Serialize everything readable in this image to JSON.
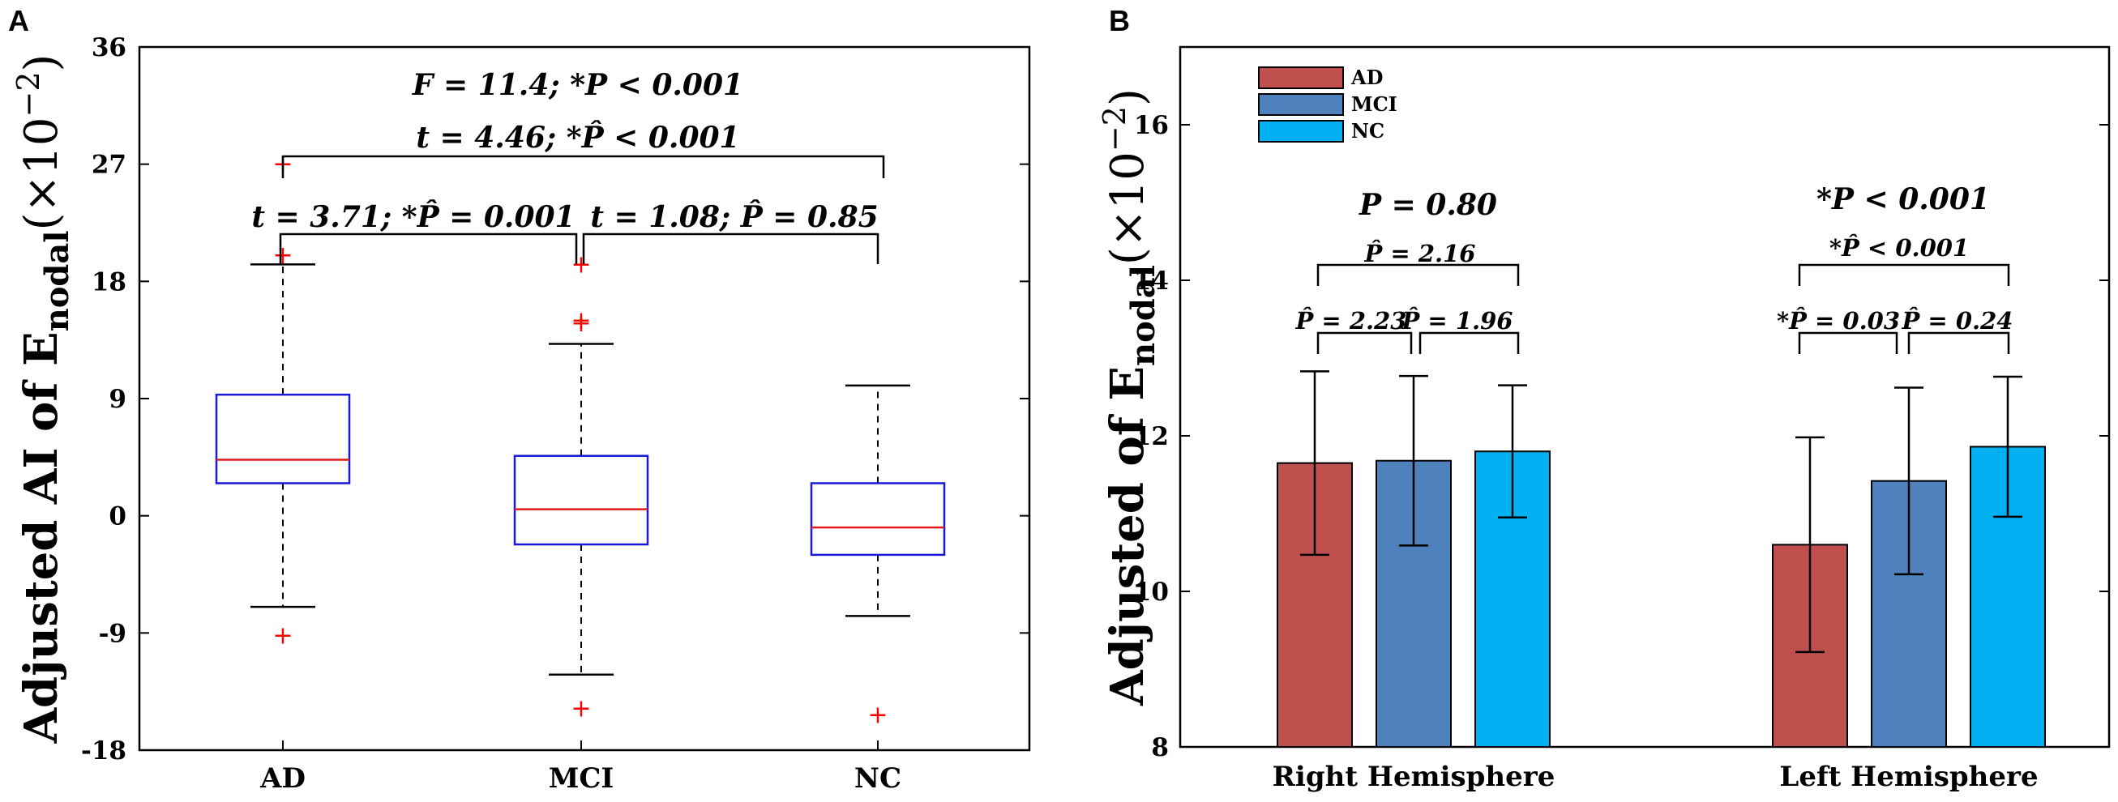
{
  "panels": {
    "a_label": "A",
    "b_label": "B"
  },
  "chart_data": [
    {
      "type": "box",
      "panel": "A",
      "ylabel": "Adjusted AI of E",
      "ylabel_sub": "nodal",
      "ylabel_suffix": "(×10",
      "ylabel_exp": "−2",
      "ylabel_close": ")",
      "ylim": [
        -18,
        36
      ],
      "yticks": [
        "-18",
        "-9",
        "0",
        "9",
        "18",
        "27",
        "36"
      ],
      "ytick_values": [
        -18,
        -9,
        0,
        9,
        18,
        27,
        36
      ],
      "categories": [
        "AD",
        "MCI",
        "NC"
      ],
      "boxes": [
        {
          "category": "AD",
          "whisker_low": -7.0,
          "q1": 2.5,
          "median": 4.3,
          "q3": 9.3,
          "whisker_high": 19.3,
          "outliers": [
            -9.2,
            20.0,
            27.0
          ]
        },
        {
          "category": "MCI",
          "whisker_low": -12.2,
          "q1": -2.2,
          "median": 0.5,
          "q3": 4.6,
          "whisker_high": 13.2,
          "outliers": [
            -14.8,
            14.8,
            15.0,
            19.3
          ]
        },
        {
          "category": "NC",
          "whisker_low": -7.7,
          "q1": -3.0,
          "median": -0.9,
          "q3": 2.5,
          "whisker_high": 10.0,
          "outliers": [
            -15.3
          ]
        }
      ],
      "annotations": {
        "overall": "F = 11.4; *P < 0.001",
        "ad_nc": "t = 4.46; *P̂ < 0.001",
        "ad_mci": "t = 3.71; *P̂ = 0.001",
        "mci_nc": "t = 1.08; P̂ = 0.85"
      },
      "colors": {
        "box": "#1a1ad6",
        "median": "#e31a1c",
        "outlier": "#ff0000"
      }
    },
    {
      "type": "bar",
      "panel": "B",
      "ylabel": "Adjusted of E",
      "ylabel_sub": "nodal",
      "ylabel_suffix": "(×10",
      "ylabel_exp": "−2",
      "ylabel_close": ")",
      "ylim": [
        8,
        17
      ],
      "yticks": [
        "8",
        "10",
        "12",
        "14",
        "16"
      ],
      "ytick_values": [
        8,
        10,
        12,
        14,
        16
      ],
      "categories": [
        "Right Hemisphere",
        "Left Hemisphere"
      ],
      "series": [
        {
          "name": "AD",
          "values": [
            11.65,
            10.6
          ],
          "errors": [
            1.18,
            1.38
          ],
          "color": "#c0504d"
        },
        {
          "name": "MCI",
          "values": [
            11.68,
            11.42
          ],
          "errors": [
            1.09,
            1.2
          ],
          "color": "#4f81bd"
        },
        {
          "name": "NC",
          "values": [
            11.8,
            11.86
          ],
          "errors": [
            0.85,
            0.9
          ],
          "color": "#00b0f0"
        }
      ],
      "legend": {
        "position": "top-left",
        "entries": [
          "AD",
          "MCI",
          "NC"
        ]
      },
      "annotations": {
        "right_overall": "P = 0.80",
        "right_ad_nc": "P̂ = 2.16",
        "right_ad_mci": "P̂ = 2.23",
        "right_mci_nc": "P̂ = 1.96",
        "left_overall": "*P < 0.001",
        "left_ad_nc": "*P̂ < 0.001",
        "left_ad_mci": "*P̂ = 0.03",
        "left_mci_nc": "P̂ = 0.24"
      }
    }
  ]
}
